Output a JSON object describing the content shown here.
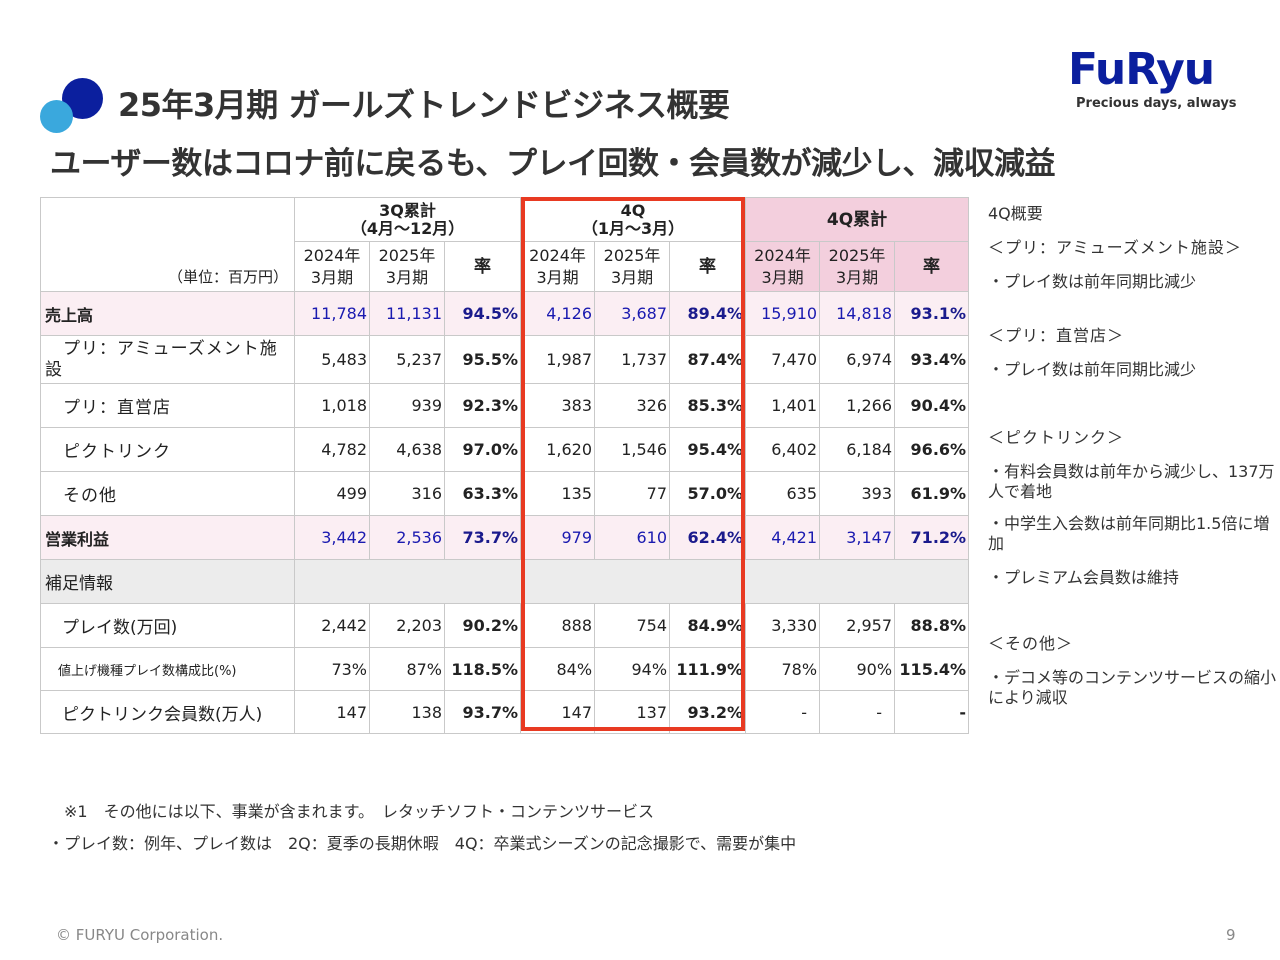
{
  "header": {
    "title": "25年3月期 ガールズトレンドビジネス概要",
    "subtitle": "ユーザー数はコロナ前に戻るも、プレイ回数・会員数が減少し、減収減益"
  },
  "logo": {
    "text": "FuRyu",
    "tagline": "Precious days, always"
  },
  "table": {
    "unit": "（単位：百万円）",
    "groups": [
      {
        "line1": "3Q累計",
        "line2": "（4月～12月）"
      },
      {
        "line1": "4Q",
        "line2": "（1月～3月）"
      },
      {
        "line1": "4Q累計",
        "line2": ""
      }
    ],
    "sub": {
      "y2024a": "2024年",
      "y2024b": "3月期",
      "y2025a": "2025年",
      "y2025b": "3月期",
      "rate": "率"
    },
    "rows": [
      {
        "label": "売上高",
        "cells": [
          "11,784",
          "11,131",
          "94.5%",
          "4,126",
          "3,687",
          "89.4%",
          "15,910",
          "14,818",
          "93.1%"
        ]
      },
      {
        "label": "　プリ：アミューズメント施設",
        "cells": [
          "5,483",
          "5,237",
          "95.5%",
          "1,987",
          "1,737",
          "87.4%",
          "7,470",
          "6,974",
          "93.4%"
        ]
      },
      {
        "label": "　プリ：直営店",
        "cells": [
          "1,018",
          "939",
          "92.3%",
          "383",
          "326",
          "85.3%",
          "1,401",
          "1,266",
          "90.4%"
        ]
      },
      {
        "label": "　ピクトリンク",
        "cells": [
          "4,782",
          "4,638",
          "97.0%",
          "1,620",
          "1,546",
          "95.4%",
          "6,402",
          "6,184",
          "96.6%"
        ]
      },
      {
        "label": "　その他",
        "cells": [
          "499",
          "316",
          "63.3%",
          "135",
          "77",
          "57.0%",
          "635",
          "393",
          "61.9%"
        ]
      },
      {
        "label": "営業利益",
        "cells": [
          "3,442",
          "2,536",
          "73.7%",
          "979",
          "610",
          "62.4%",
          "4,421",
          "3,147",
          "71.2%"
        ]
      },
      {
        "label": "補足情報",
        "cells": [
          "",
          "",
          "",
          "",
          "",
          "",
          "",
          "",
          ""
        ]
      },
      {
        "label": "　プレイ数(万回)",
        "cells": [
          "2,442",
          "2,203",
          "90.2%",
          "888",
          "754",
          "84.9%",
          "3,330",
          "2,957",
          "88.8%"
        ]
      },
      {
        "label": "　値上げ機種プレイ数構成比(%)",
        "cells": [
          "73%",
          "87%",
          "118.5%",
          "84%",
          "94%",
          "111.9%",
          "78%",
          "90%",
          "115.4%"
        ]
      },
      {
        "label": "　ピクトリンク会員数(万人)",
        "cells": [
          "147",
          "138",
          "93.7%",
          "147",
          "137",
          "93.2%",
          "-",
          "-",
          "-"
        ]
      }
    ]
  },
  "side": {
    "s1": "4Q概要",
    "s2": "＜プリ：アミューズメント施設＞",
    "s3": "・プレイ数は前年同期比減少",
    "s4": "＜プリ：直営店＞",
    "s5": "・プレイ数は前年同期比減少",
    "s6": "＜ピクトリンク＞",
    "s7": "・有料会員数は前年から減少し、137万人で着地",
    "s8": "・中学生入会数は前年同期比1.5倍に増加",
    "s9": "・プレミアム会員数は維持",
    "s10": "＜その他＞",
    "s11": "・デコメ等のコンテンツサービスの縮小により減収"
  },
  "notes": {
    "n1": "※1　その他には以下、事業が含まれます。　レタッチソフト・コンテンツサービス",
    "n2": "・プレイ数：例年、プレイ数は　2Q：夏季の長期休暇　4Q：卒業式シーズンの記念撮影で、需要が集中"
  },
  "footer": {
    "copyright": "© FURYU Corporation.",
    "page": "9"
  },
  "colors": {
    "accent_navy": "#0b1f9e",
    "accent_sky": "#3aa8dd",
    "highlight_red": "#e83a22",
    "pink_header": "#f3cfdd"
  }
}
